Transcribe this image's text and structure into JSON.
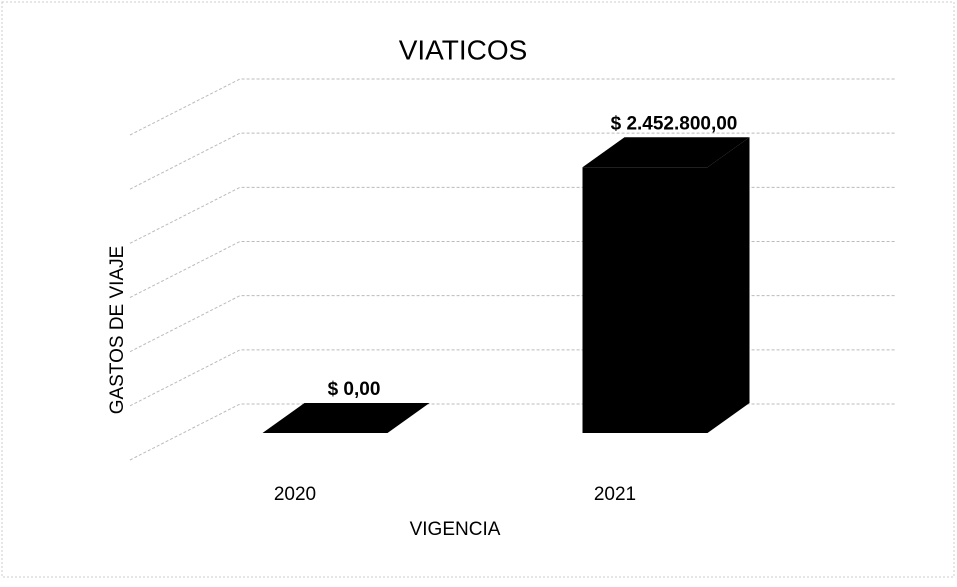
{
  "chart_data": {
    "type": "bar3d",
    "title": "VIATICOS",
    "x_label": "VIGENCIA",
    "y_label": "GASTOS DE VIAJE",
    "categories": [
      "2020",
      "2021"
    ],
    "values": [
      0,
      2452800
    ],
    "value_labels": [
      "$ 0,00",
      "$ 2.452.800,00"
    ],
    "color": "#000000",
    "ylim": [
      0,
      3000000
    ],
    "yticks": [
      0,
      500000,
      1000000,
      1500000,
      2000000,
      2500000,
      3000000
    ],
    "grid": true
  }
}
